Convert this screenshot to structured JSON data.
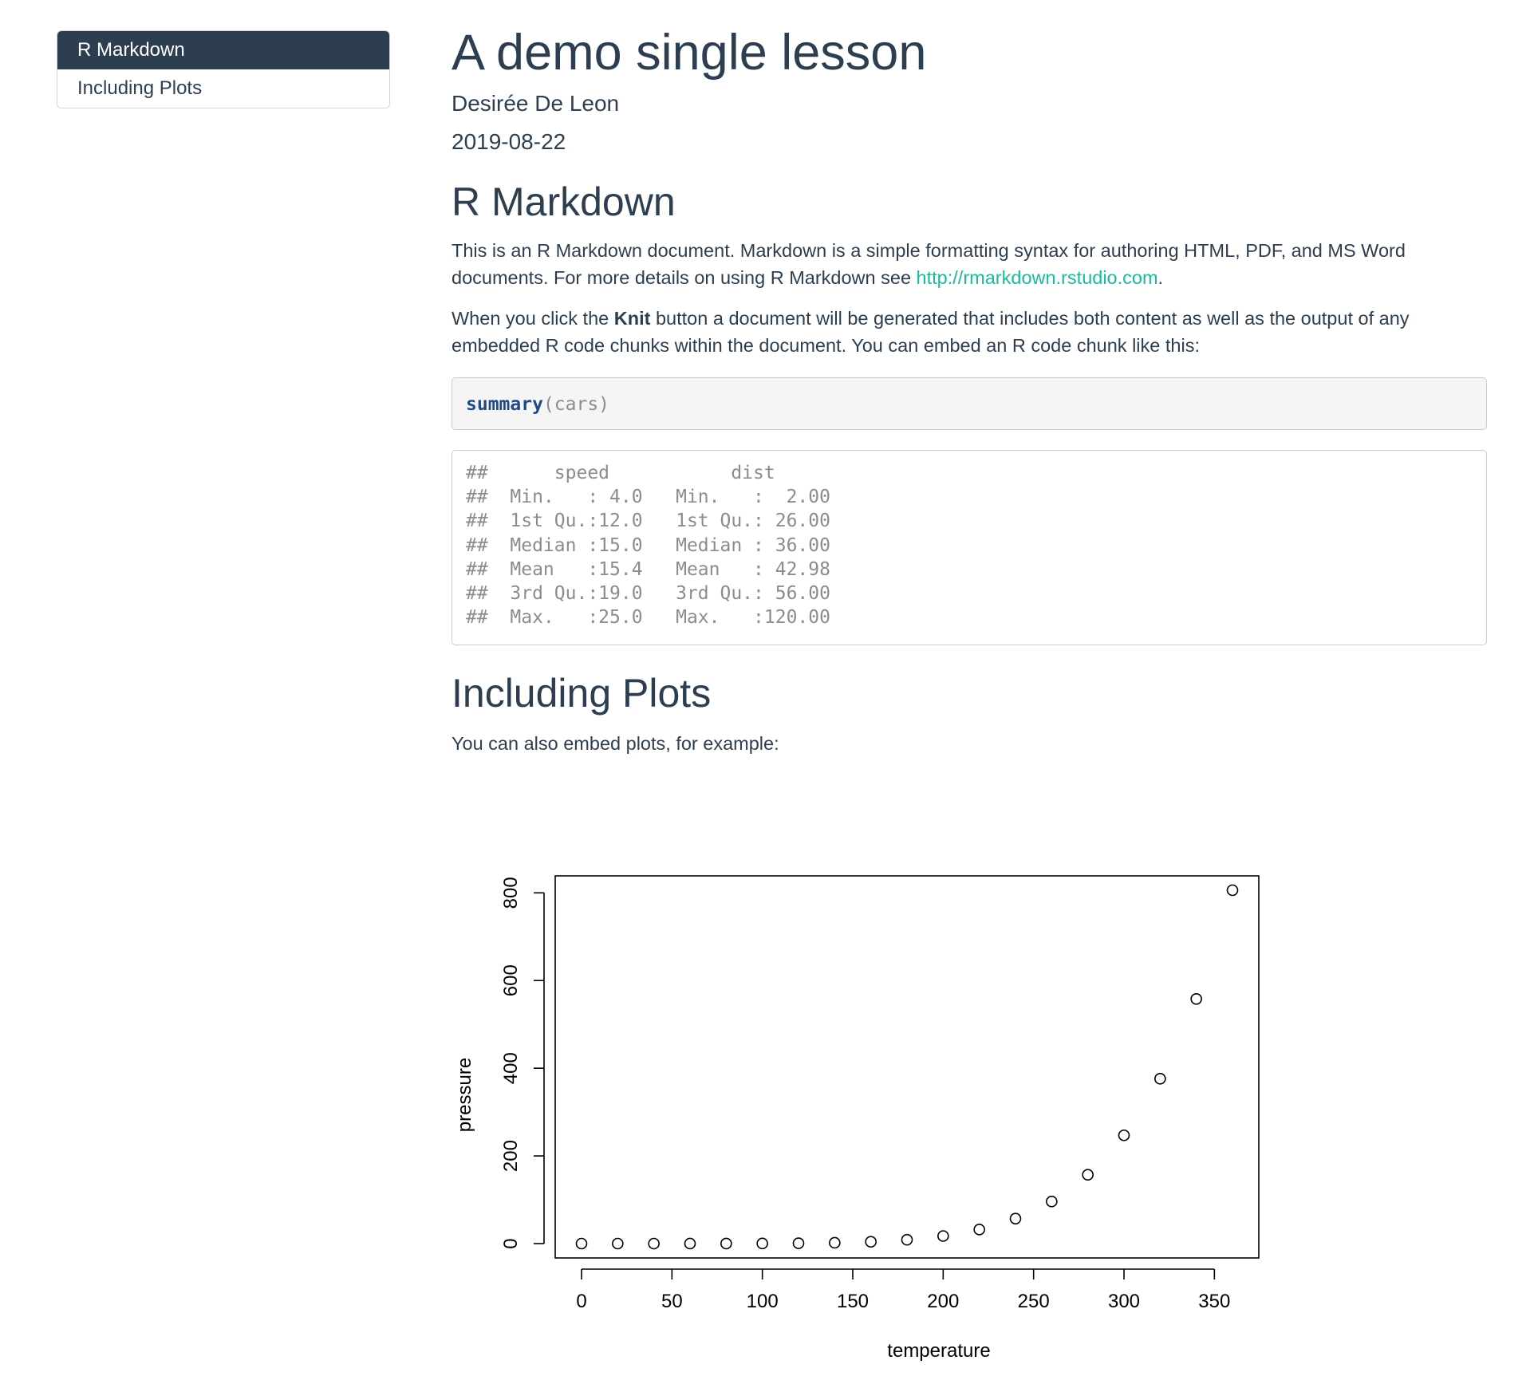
{
  "toc": {
    "items": [
      {
        "label": "R Markdown",
        "active": true
      },
      {
        "label": "Including Plots",
        "active": false
      }
    ]
  },
  "doc": {
    "title": "A demo single lesson",
    "author": "Desirée De Leon",
    "date": "2019-08-22"
  },
  "section1": {
    "heading": "R Markdown",
    "para1_text": "This is an R Markdown document. Markdown is a simple formatting syntax for authoring HTML, PDF, and MS Word documents. For more details on using R Markdown see ",
    "para1_link": "http://rmarkdown.rstudio.com",
    "para1_end": ".",
    "para2_pre": "When you click the ",
    "para2_bold": "Knit",
    "para2_post": " button a document will be generated that includes both content as well as the output of any embedded R code chunks within the document. You can embed an R code chunk like this:"
  },
  "code": {
    "fn": "summary",
    "args": "(cars)"
  },
  "output": {
    "lines": [
      "##      speed           dist       ",
      "##  Min.   : 4.0   Min.   :  2.00  ",
      "##  1st Qu.:12.0   1st Qu.: 26.00  ",
      "##  Median :15.0   Median : 36.00  ",
      "##  Mean   :15.4   Mean   : 42.98  ",
      "##  3rd Qu.:19.0   3rd Qu.: 56.00  ",
      "##  Max.   :25.0   Max.   :120.00  "
    ]
  },
  "section2": {
    "heading": "Including Plots",
    "para": "You can also embed plots, for example:"
  },
  "colors": {
    "primary": "#2c3e50",
    "link": "#18bc9c"
  },
  "chart_data": {
    "type": "scatter",
    "title": "",
    "xlabel": "temperature",
    "ylabel": "pressure",
    "x": [
      0,
      20,
      40,
      60,
      80,
      100,
      120,
      140,
      160,
      180,
      200,
      220,
      240,
      260,
      280,
      300,
      320,
      340,
      360
    ],
    "y": [
      0.0002,
      0.0012,
      0.006,
      0.03,
      0.09,
      0.27,
      0.75,
      1.85,
      4.2,
      8.8,
      17.3,
      32.1,
      57,
      96,
      157,
      247,
      376,
      558,
      806
    ],
    "xlim": [
      0,
      360
    ],
    "ylim": [
      0,
      806
    ],
    "xticks": [
      0,
      50,
      100,
      150,
      200,
      250,
      300,
      350
    ],
    "yticks": [
      0,
      200,
      400,
      600,
      800
    ],
    "grid": false,
    "marker": "open-circle"
  }
}
